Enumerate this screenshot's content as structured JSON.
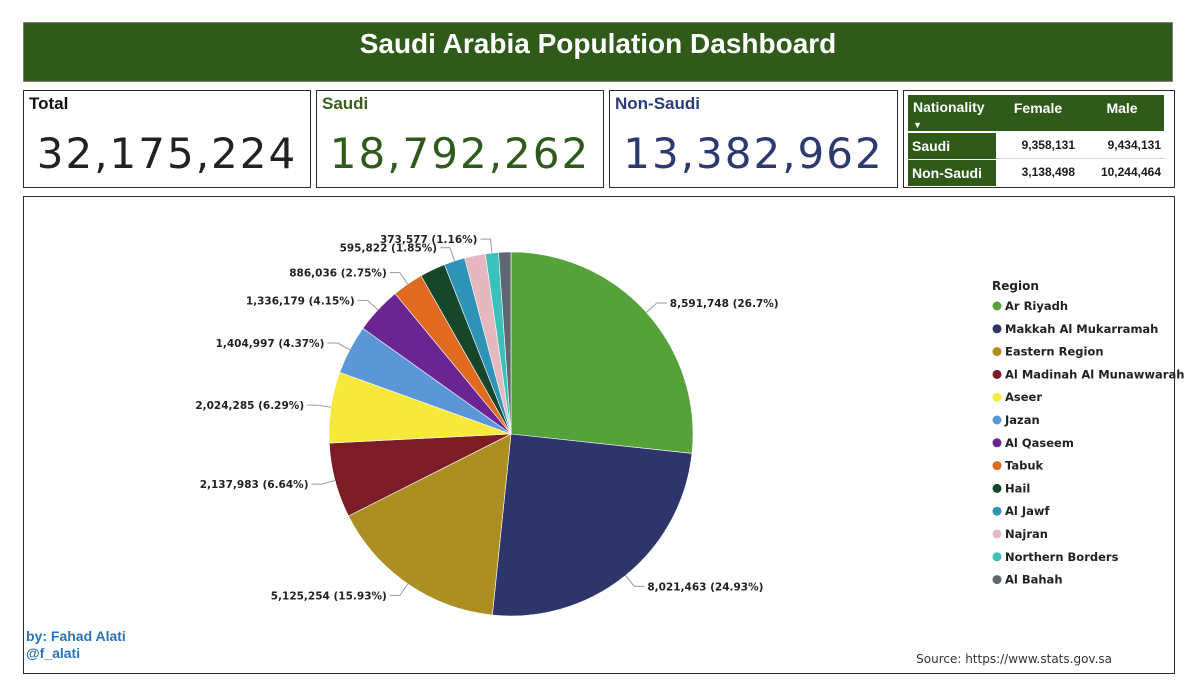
{
  "title": "Saudi Arabia Population Dashboard",
  "cards": {
    "total": {
      "label": "Total",
      "value": "32,175,224",
      "label_color": "#111111",
      "value_color": "#222222"
    },
    "saudi": {
      "label": "Saudi",
      "value": "18,792,262",
      "label_color": "#3a5f1d",
      "value_color": "#2f5a1a"
    },
    "non_saudi": {
      "label": "Non-Saudi",
      "value": "13,382,962",
      "label_color": "#2d3a78",
      "value_color": "#2d3a6e"
    }
  },
  "nationality_table": {
    "headers": {
      "nationality": "Nationality",
      "female": "Female",
      "male": "Male"
    },
    "sort_indicator": "▼",
    "rows": [
      {
        "name": "Saudi",
        "female": "9,358,131",
        "male": "9,434,131"
      },
      {
        "name": "Non-Saudi",
        "female": "3,138,498",
        "male": "10,244,464"
      }
    ]
  },
  "chart_data": {
    "type": "pie",
    "legend_title": "Region",
    "legend_position": "right",
    "start_angle_deg": 0,
    "direction": "clockwise",
    "slices": [
      {
        "region": "Ar Riyadh",
        "value": 8591748,
        "label": "8,591,748 (26.7%)",
        "color": "#56a23a"
      },
      {
        "region": "Makkah Al Mukarramah",
        "value": 8021463,
        "label": "8,021,463 (24.93%)",
        "color": "#2d356b"
      },
      {
        "region": "Eastern Region",
        "value": 5125254,
        "label": "5,125,254 (15.93%)",
        "color": "#ad8e22"
      },
      {
        "region": "Al Madinah Al Munawwarah",
        "value": 2137983,
        "label": "2,137,983 (6.64%)",
        "color": "#7c1c26"
      },
      {
        "region": "Aseer",
        "value": 2024285,
        "label": "2,024,285 (6.29%)",
        "color": "#f6e93b"
      },
      {
        "region": "Jazan",
        "value": 1404997,
        "label": "1,404,997 (4.37%)",
        "color": "#5b97d6"
      },
      {
        "region": "Al Qaseem",
        "value": 1336179,
        "label": "1,336,179 (4.15%)",
        "color": "#6a2592"
      },
      {
        "region": "Tabuk",
        "value": 886036,
        "label": "886,036 (2.75%)",
        "color": "#e06a20"
      },
      {
        "region": "Hail",
        "value": 731147,
        "label": "",
        "color": "#17472a"
      },
      {
        "region": "Al Jawf",
        "value": 595822,
        "label": "595,822 (1.85%)",
        "color": "#2f93b8"
      },
      {
        "region": "Najran",
        "value": 595822,
        "label": "",
        "color": "#e5b8bf"
      },
      {
        "region": "Northern Borders",
        "value": 373577,
        "label": "373,577 (1.16%)",
        "color": "#3bc1b9"
      },
      {
        "region": "Al Bahah",
        "value": 351000,
        "label": "",
        "color": "#5f6770"
      }
    ]
  },
  "footer": {
    "author_line1": "by: Fahad Alati",
    "author_line2": "@f_alati",
    "source": "Source: https://www.stats.gov.sa"
  },
  "colors": {
    "header_green": "#2f5a1a",
    "author_blue": "#2a74b8"
  }
}
